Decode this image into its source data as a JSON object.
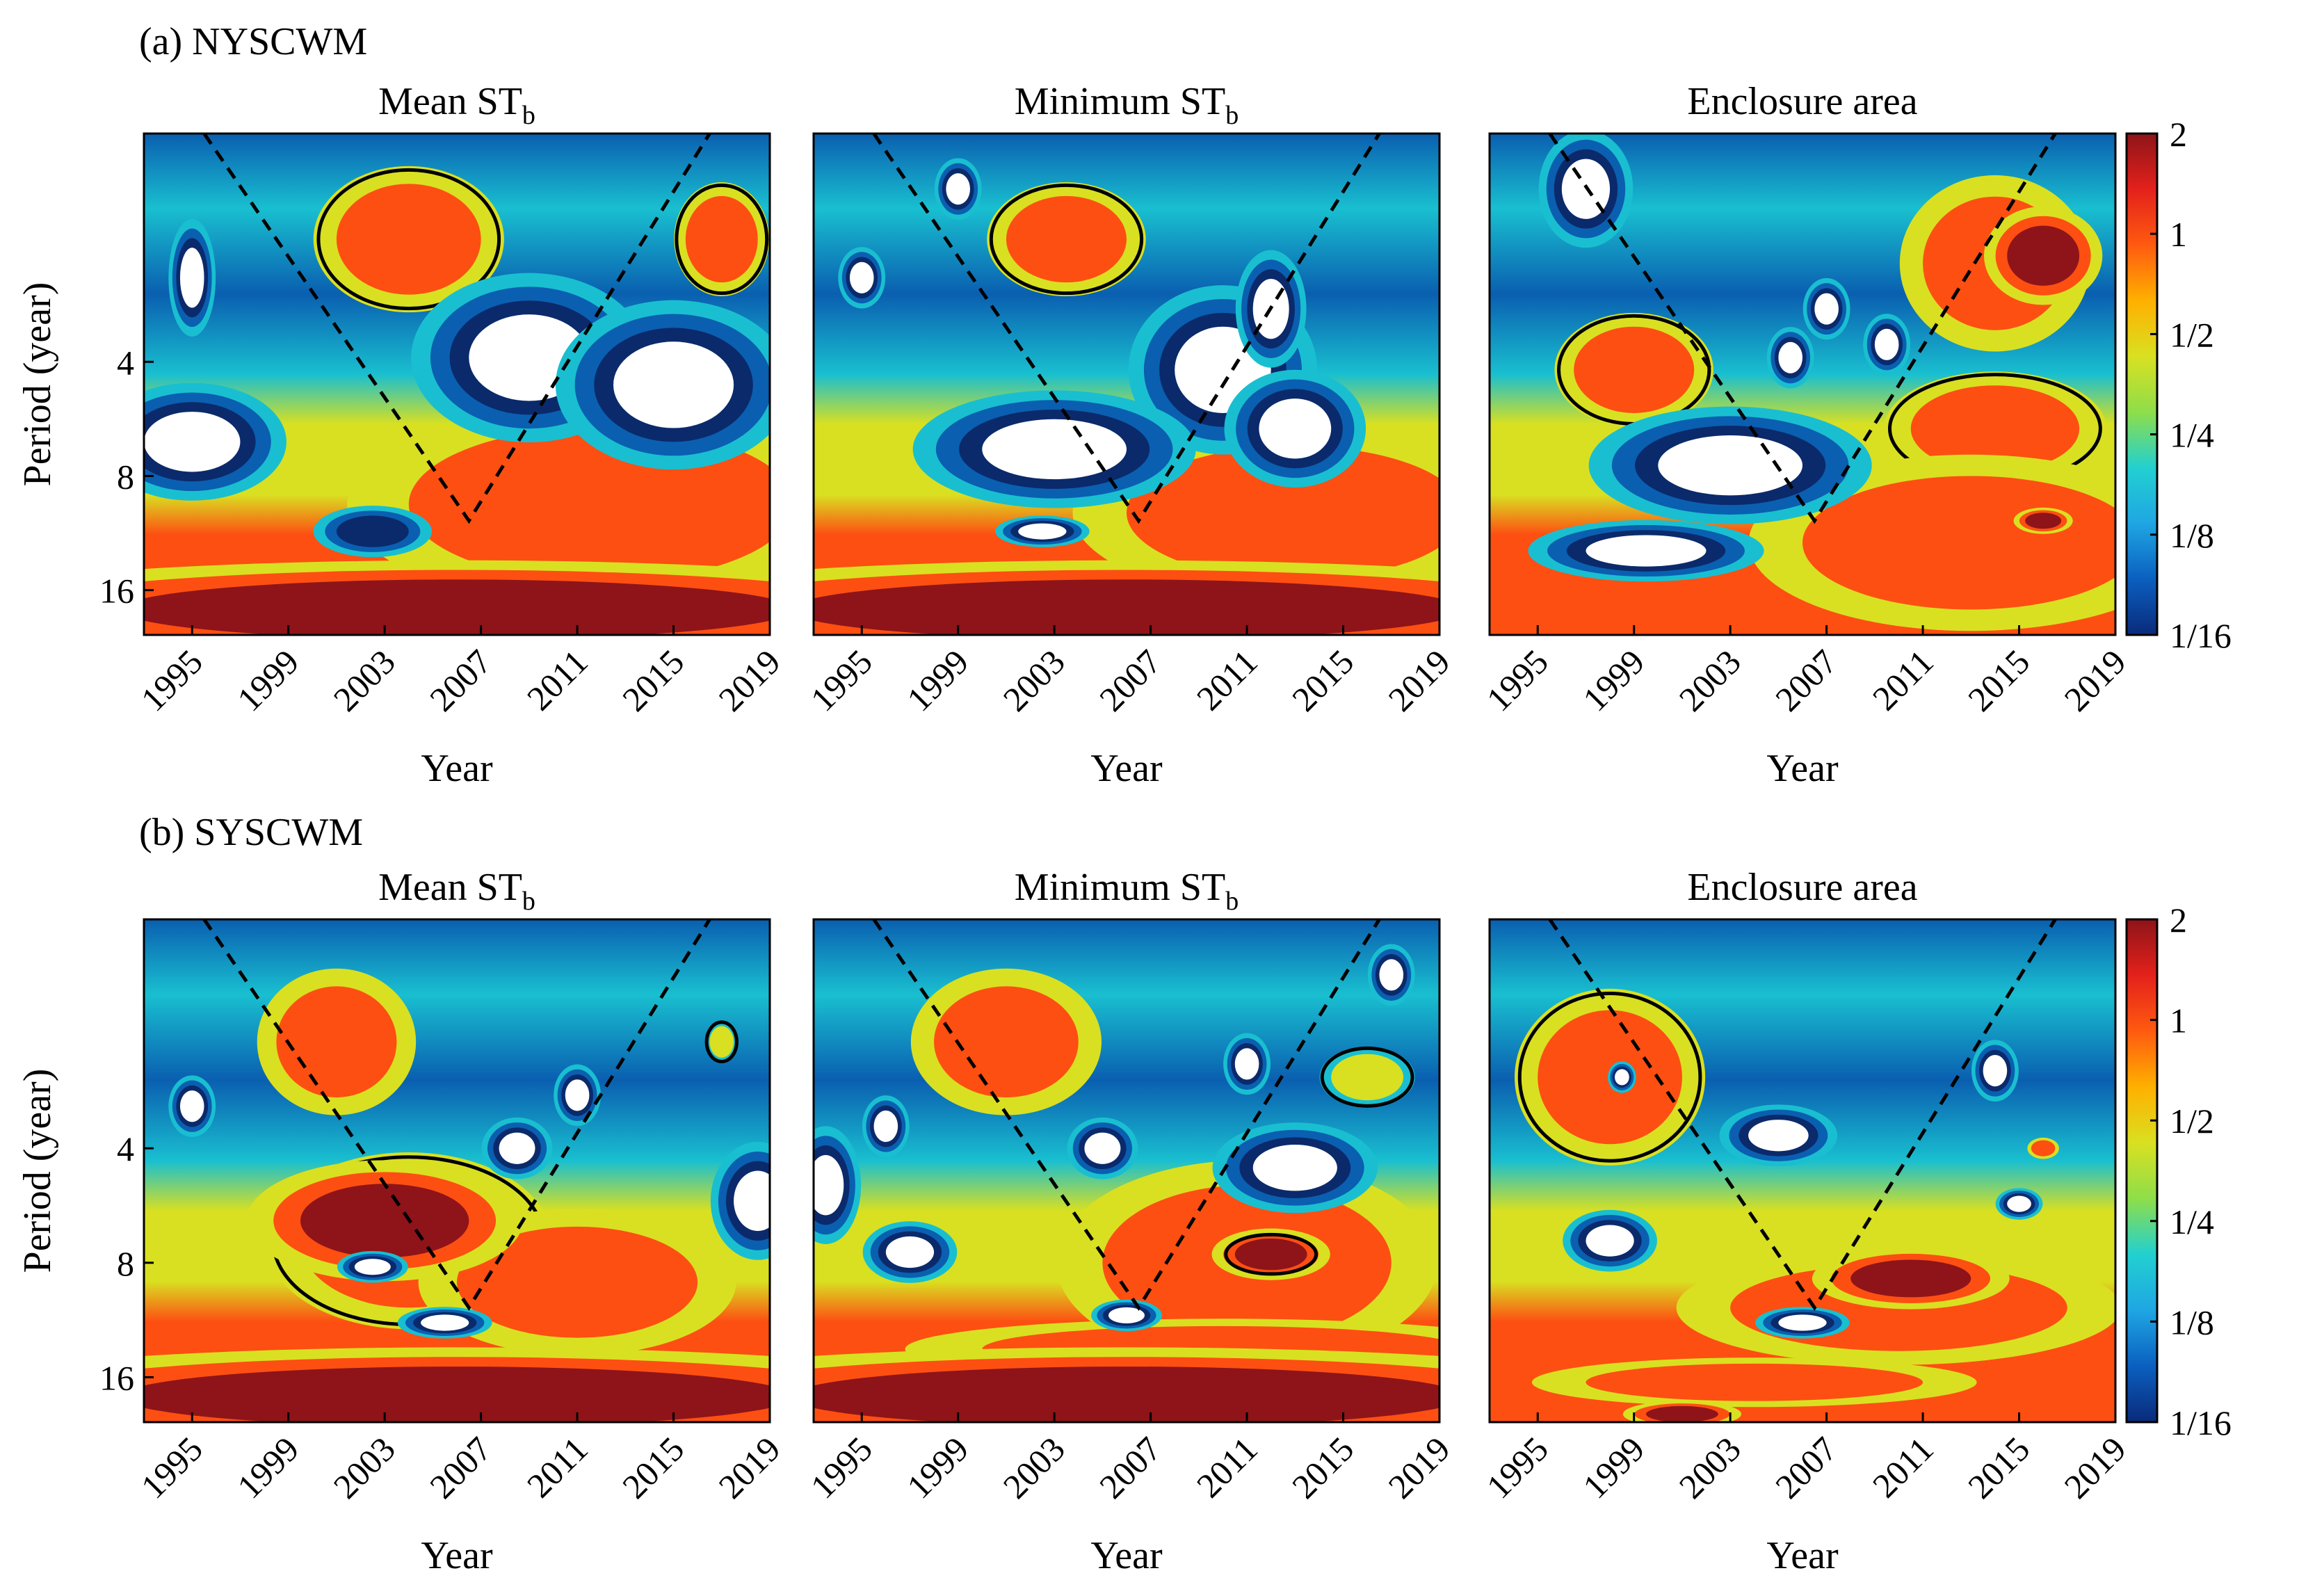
{
  "colors": {
    "white": "#ffffff",
    "navy": "#0b2a6b",
    "blue": "#0a5fb0",
    "cyan": "#19bfd0",
    "yellow": "#d9e021",
    "orange": "#fd4f12",
    "darkred": "#8e1419",
    "line": "#000000"
  },
  "colorbar_gradient": [
    "#0a2a7a",
    "#0b5fbf",
    "#1fa6e3",
    "#22d0d0",
    "#8ede4a",
    "#d9e021",
    "#ffb000",
    "#ff5a10",
    "#e3211b",
    "#8e1419"
  ],
  "chart_data": [
    {
      "type": "heatmap",
      "group": "(a) NYSCWM",
      "title_main": "Mean ST",
      "title_sub": "b",
      "xlabel": "Year",
      "ylabel": "Period (year)",
      "x_ticks": [
        "1995",
        "1999",
        "2003",
        "2007",
        "2011",
        "2015",
        "2019"
      ],
      "y_ticks": [
        "4",
        "8",
        "16"
      ],
      "coi_tip": [
        2006.5,
        10.5
      ],
      "features": [
        {
          "level": "1",
          "year": 2004,
          "period": 1.9,
          "year_span": 6,
          "period_factor": 1.4,
          "significant": true
        },
        {
          "level": "1",
          "year": 2017,
          "period": 1.9,
          "year_span": 3,
          "period_factor": 1.3,
          "significant": true
        },
        {
          "level": "1",
          "year": 2012,
          "period": 9.5,
          "year_span": 16,
          "period_factor": 1.6,
          "significant": false
        },
        {
          "level": "2",
          "year": 2006,
          "period": 18,
          "year_span": 28,
          "period_factor": 1.2,
          "significant": false
        },
        {
          "level": "<1/16",
          "year": 1995,
          "period": 2.4,
          "year_span": 1,
          "period_factor": 1.2,
          "significant": false
        },
        {
          "level": "<1/16",
          "year": 1995,
          "period": 6.5,
          "year_span": 4,
          "period_factor": 1.2,
          "significant": false
        },
        {
          "level": "<1/16",
          "year": 2009,
          "period": 3.9,
          "year_span": 5,
          "period_factor": 1.3,
          "significant": false
        },
        {
          "level": "<1/16",
          "year": 2015,
          "period": 4.6,
          "year_span": 5,
          "period_factor": 1.3,
          "significant": false
        },
        {
          "level": "1/16",
          "year": 2002.5,
          "period": 11.2,
          "year_span": 3,
          "period_factor": 1.1,
          "significant": false
        }
      ]
    },
    {
      "type": "heatmap",
      "group": "(a) NYSCWM",
      "title_main": "Minimum ST",
      "title_sub": "b",
      "xlabel": "Year",
      "ylabel": "",
      "x_ticks": [
        "1995",
        "1999",
        "2003",
        "2007",
        "2011",
        "2015",
        "2019"
      ],
      "y_ticks": [],
      "coi_tip": [
        2006.5,
        10.5
      ],
      "features": [
        {
          "level": "1",
          "year": 2003.5,
          "period": 1.9,
          "year_span": 5,
          "period_factor": 1.3,
          "significant": true
        },
        {
          "level": "1",
          "year": 2013,
          "period": 10,
          "year_span": 14,
          "period_factor": 1.5,
          "significant": false
        },
        {
          "level": "2",
          "year": 2006,
          "period": 18,
          "year_span": 28,
          "period_factor": 1.2,
          "significant": false
        },
        {
          "level": "<1/16",
          "year": 1999,
          "period": 1.4,
          "year_span": 1,
          "period_factor": 1.1,
          "significant": false
        },
        {
          "level": "<1/16",
          "year": 1995,
          "period": 2.4,
          "year_span": 1,
          "period_factor": 1.1,
          "significant": false
        },
        {
          "level": "<1/16",
          "year": 2010,
          "period": 4.2,
          "year_span": 4,
          "period_factor": 1.3,
          "significant": false
        },
        {
          "level": "<1/16",
          "year": 2003,
          "period": 6.8,
          "year_span": 6,
          "period_factor": 1.2,
          "significant": false
        },
        {
          "level": "<1/16",
          "year": 2013,
          "period": 6,
          "year_span": 3,
          "period_factor": 1.2,
          "significant": false
        },
        {
          "level": "<1/16",
          "year": 2012,
          "period": 2.9,
          "year_span": 1.5,
          "period_factor": 1.2,
          "significant": false
        },
        {
          "level": "<1/16",
          "year": 2002.5,
          "period": 11.2,
          "year_span": 2,
          "period_factor": 1.05,
          "significant": false
        }
      ]
    },
    {
      "type": "heatmap",
      "group": "(a) NYSCWM",
      "title_main": "Enclosure area",
      "title_sub": "",
      "xlabel": "Year",
      "ylabel": "",
      "x_ticks": [
        "1995",
        "1999",
        "2003",
        "2007",
        "2011",
        "2015",
        "2019"
      ],
      "y_ticks": [],
      "coi_tip": [
        2006.5,
        10.5
      ],
      "features": [
        {
          "level": "1",
          "year": 1999,
          "period": 4.2,
          "year_span": 5,
          "period_factor": 1.3,
          "significant": true
        },
        {
          "level": "1",
          "year": 2014,
          "period": 2.2,
          "year_span": 6,
          "period_factor": 1.5,
          "significant": false
        },
        {
          "level": "1",
          "year": 2014,
          "period": 6,
          "year_span": 7,
          "period_factor": 1.3,
          "significant": true
        },
        {
          "level": "1",
          "year": 2013,
          "period": 12,
          "year_span": 14,
          "period_factor": 1.5,
          "significant": false
        },
        {
          "level": "2",
          "year": 2016,
          "period": 2.1,
          "year_span": 3,
          "period_factor": 1.2,
          "significant": false
        },
        {
          "level": "2",
          "year": 2016,
          "period": 10.5,
          "year_span": 1.5,
          "period_factor": 1.05,
          "significant": false
        },
        {
          "level": "<1/16",
          "year": 1997,
          "period": 1.4,
          "year_span": 2,
          "period_factor": 1.2,
          "significant": false
        },
        {
          "level": "<1/16",
          "year": 2003,
          "period": 7.5,
          "year_span": 6,
          "period_factor": 1.2,
          "significant": false
        },
        {
          "level": "<1/16",
          "year": 1999.5,
          "period": 12.6,
          "year_span": 5,
          "period_factor": 1.1,
          "significant": false
        },
        {
          "level": "<1/16",
          "year": 2007,
          "period": 2.9,
          "year_span": 1,
          "period_factor": 1.1,
          "significant": false
        },
        {
          "level": "<1/16",
          "year": 2005.5,
          "period": 3.9,
          "year_span": 1,
          "period_factor": 1.1,
          "significant": false
        },
        {
          "level": "<1/16",
          "year": 2009.5,
          "period": 3.6,
          "year_span": 1,
          "period_factor": 1.1,
          "significant": false
        }
      ]
    },
    {
      "type": "heatmap",
      "group": "(b) SYSCWM",
      "title_main": "Mean ST",
      "title_sub": "b",
      "xlabel": "Year",
      "ylabel": "Period (year)",
      "x_ticks": [
        "1995",
        "1999",
        "2003",
        "2007",
        "2011",
        "2015",
        "2019"
      ],
      "y_ticks": [
        "4",
        "8",
        "16"
      ],
      "coi_tip": [
        2006.5,
        10.5
      ],
      "features": [
        {
          "level": "1",
          "year": 2001,
          "period": 2.1,
          "year_span": 5,
          "period_factor": 1.4,
          "significant": false
        },
        {
          "level": "1",
          "year": 2004,
          "period": 7,
          "year_span": 9,
          "period_factor": 1.5,
          "significant": true
        },
        {
          "level": "1",
          "year": 2011,
          "period": 9,
          "year_span": 10,
          "period_factor": 1.4,
          "significant": false
        },
        {
          "level": "2",
          "year": 2003,
          "period": 6.2,
          "year_span": 7,
          "period_factor": 1.25,
          "significant": false
        },
        {
          "level": "2",
          "year": 2006,
          "period": 18,
          "year_span": 28,
          "period_factor": 1.2,
          "significant": false
        },
        {
          "level": "<1/16",
          "year": 1995,
          "period": 3.1,
          "year_span": 1,
          "period_factor": 1.1,
          "significant": false
        },
        {
          "level": "<1/16",
          "year": 2011,
          "period": 2.9,
          "year_span": 1,
          "period_factor": 1.1,
          "significant": false
        },
        {
          "level": "<1/16",
          "year": 2008.5,
          "period": 4.0,
          "year_span": 1.5,
          "period_factor": 1.1,
          "significant": false
        },
        {
          "level": "<1/16",
          "year": 2018.5,
          "period": 5.5,
          "year_span": 2,
          "period_factor": 1.2,
          "significant": false
        },
        {
          "level": "<1/16",
          "year": 2002.5,
          "period": 8.2,
          "year_span": 1.5,
          "period_factor": 1.05,
          "significant": false
        },
        {
          "level": "<1/16",
          "year": 2005.5,
          "period": 11.5,
          "year_span": 2,
          "period_factor": 1.05,
          "significant": false
        },
        {
          "level": "1/2",
          "year": 2017,
          "period": 2.1,
          "year_span": 1,
          "period_factor": 1.1,
          "significant": true
        }
      ]
    },
    {
      "type": "heatmap",
      "group": "(b) SYSCWM",
      "title_main": "Minimum ST",
      "title_sub": "b",
      "xlabel": "Year",
      "ylabel": "",
      "x_ticks": [
        "1995",
        "1999",
        "2003",
        "2007",
        "2011",
        "2015",
        "2019"
      ],
      "y_ticks": [],
      "coi_tip": [
        2006.5,
        10.5
      ],
      "features": [
        {
          "level": "1",
          "year": 2001,
          "period": 2.1,
          "year_span": 6,
          "period_factor": 1.4,
          "significant": false
        },
        {
          "level": "1",
          "year": 2011,
          "period": 8,
          "year_span": 12,
          "period_factor": 1.6,
          "significant": false
        },
        {
          "level": "1",
          "year": 2010,
          "period": 13.5,
          "year_span": 20,
          "period_factor": 1.15,
          "significant": false
        },
        {
          "level": "2",
          "year": 2012,
          "period": 7.6,
          "year_span": 3,
          "period_factor": 1.1,
          "significant": true
        },
        {
          "level": "2",
          "year": 2006,
          "period": 18,
          "year_span": 28,
          "period_factor": 1.2,
          "significant": false
        },
        {
          "level": "<1/16",
          "year": 1996,
          "period": 3.5,
          "year_span": 1,
          "period_factor": 1.1,
          "significant": false
        },
        {
          "level": "<1/16",
          "year": 1993.5,
          "period": 5,
          "year_span": 1.5,
          "period_factor": 1.2,
          "significant": false
        },
        {
          "level": "<1/16",
          "year": 1997,
          "period": 7.5,
          "year_span": 2,
          "period_factor": 1.1,
          "significant": false
        },
        {
          "level": "<1/16",
          "year": 2005,
          "period": 4,
          "year_span": 1.5,
          "period_factor": 1.1,
          "significant": false
        },
        {
          "level": "<1/16",
          "year": 2013,
          "period": 4.5,
          "year_span": 3.5,
          "period_factor": 1.15,
          "significant": false
        },
        {
          "level": "<1/16",
          "year": 2011,
          "period": 2.4,
          "year_span": 1,
          "period_factor": 1.1,
          "significant": false
        },
        {
          "level": "<1/16",
          "year": 2006,
          "period": 11,
          "year_span": 1.5,
          "period_factor": 1.05,
          "significant": false
        },
        {
          "level": "<1/16",
          "year": 2017,
          "period": 1.4,
          "year_span": 1,
          "period_factor": 1.1,
          "significant": false
        },
        {
          "level": "1/2",
          "year": 2016,
          "period": 2.6,
          "year_span": 3,
          "period_factor": 1.15,
          "significant": true
        }
      ]
    },
    {
      "type": "heatmap",
      "group": "(b) SYSCWM",
      "title_main": "Enclosure area",
      "title_sub": "",
      "xlabel": "Year",
      "ylabel": "",
      "x_ticks": [
        "1995",
        "1999",
        "2003",
        "2007",
        "2011",
        "2015",
        "2019"
      ],
      "y_ticks": [],
      "coi_tip": [
        2006.5,
        10.5
      ],
      "features": [
        {
          "level": "1",
          "year": 1998,
          "period": 2.6,
          "year_span": 6,
          "period_factor": 1.5,
          "significant": true
        },
        {
          "level": "1",
          "year": 2010,
          "period": 10.5,
          "year_span": 14,
          "period_factor": 1.3,
          "significant": false
        },
        {
          "level": "1",
          "year": 2004,
          "period": 16.5,
          "year_span": 14,
          "period_factor": 1.12,
          "significant": false
        },
        {
          "level": "1",
          "year": 2016,
          "period": 4,
          "year_span": 1,
          "period_factor": 1.05,
          "significant": false
        },
        {
          "level": "2",
          "year": 2010.5,
          "period": 8.8,
          "year_span": 5,
          "period_factor": 1.12,
          "significant": false
        },
        {
          "level": "2",
          "year": 2001,
          "period": 20,
          "year_span": 3,
          "period_factor": 1.05,
          "significant": false
        },
        {
          "level": "<1/16",
          "year": 1998.5,
          "period": 2.6,
          "year_span": 0.6,
          "period_factor": 1.05,
          "significant": false
        },
        {
          "level": "<1/16",
          "year": 2005,
          "period": 3.7,
          "year_span": 2.5,
          "period_factor": 1.1,
          "significant": false
        },
        {
          "level": "<1/16",
          "year": 1998,
          "period": 7,
          "year_span": 2,
          "period_factor": 1.1,
          "significant": false
        },
        {
          "level": "<1/16",
          "year": 2006,
          "period": 11.5,
          "year_span": 2,
          "period_factor": 1.05,
          "significant": false
        },
        {
          "level": "<1/16",
          "year": 2014,
          "period": 2.5,
          "year_span": 1,
          "period_factor": 1.1,
          "significant": false
        },
        {
          "level": "<1/16",
          "year": 2015,
          "period": 5.6,
          "year_span": 1,
          "period_factor": 1.05,
          "significant": false
        }
      ]
    }
  ],
  "colorbar": {
    "ticks": [
      "2",
      "1",
      "1/2",
      "1/4",
      "1/8",
      "1/16"
    ],
    "scale": "log2",
    "range": [
      "1/16",
      "2"
    ]
  },
  "groups": [
    "(a) NYSCWM",
    "(b) SYSCWM"
  ]
}
